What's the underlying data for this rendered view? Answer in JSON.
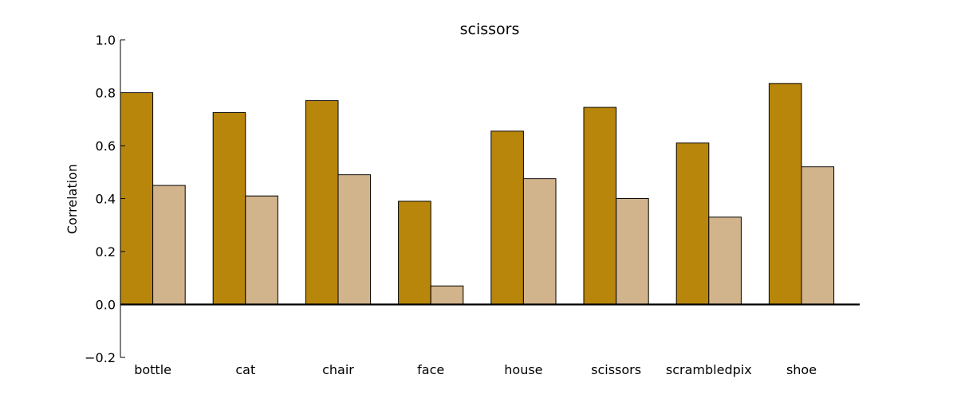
{
  "chart_data": {
    "type": "bar",
    "title": "scissors",
    "xlabel": "",
    "ylabel": "Correlation",
    "ylim": [
      -0.2,
      1.0
    ],
    "yticks": [
      -0.2,
      0.0,
      0.2,
      0.4,
      0.6,
      0.8,
      1.0
    ],
    "ytick_labels": [
      "−0.2",
      "0.0",
      "0.2",
      "0.4",
      "0.6",
      "0.8",
      "1.0"
    ],
    "grid": false,
    "legend": null,
    "categories": [
      "bottle",
      "cat",
      "chair",
      "face",
      "house",
      "scissors",
      "scrambledpix",
      "shoe"
    ],
    "series": [
      {
        "name": "series-1",
        "color": "#b8860b",
        "values": [
          0.8,
          0.725,
          0.77,
          0.39,
          0.655,
          0.745,
          0.61,
          0.835
        ]
      },
      {
        "name": "series-2",
        "color": "#d2b48c",
        "values": [
          0.45,
          0.41,
          0.49,
          0.07,
          0.475,
          0.4,
          0.33,
          0.52
        ]
      }
    ]
  }
}
